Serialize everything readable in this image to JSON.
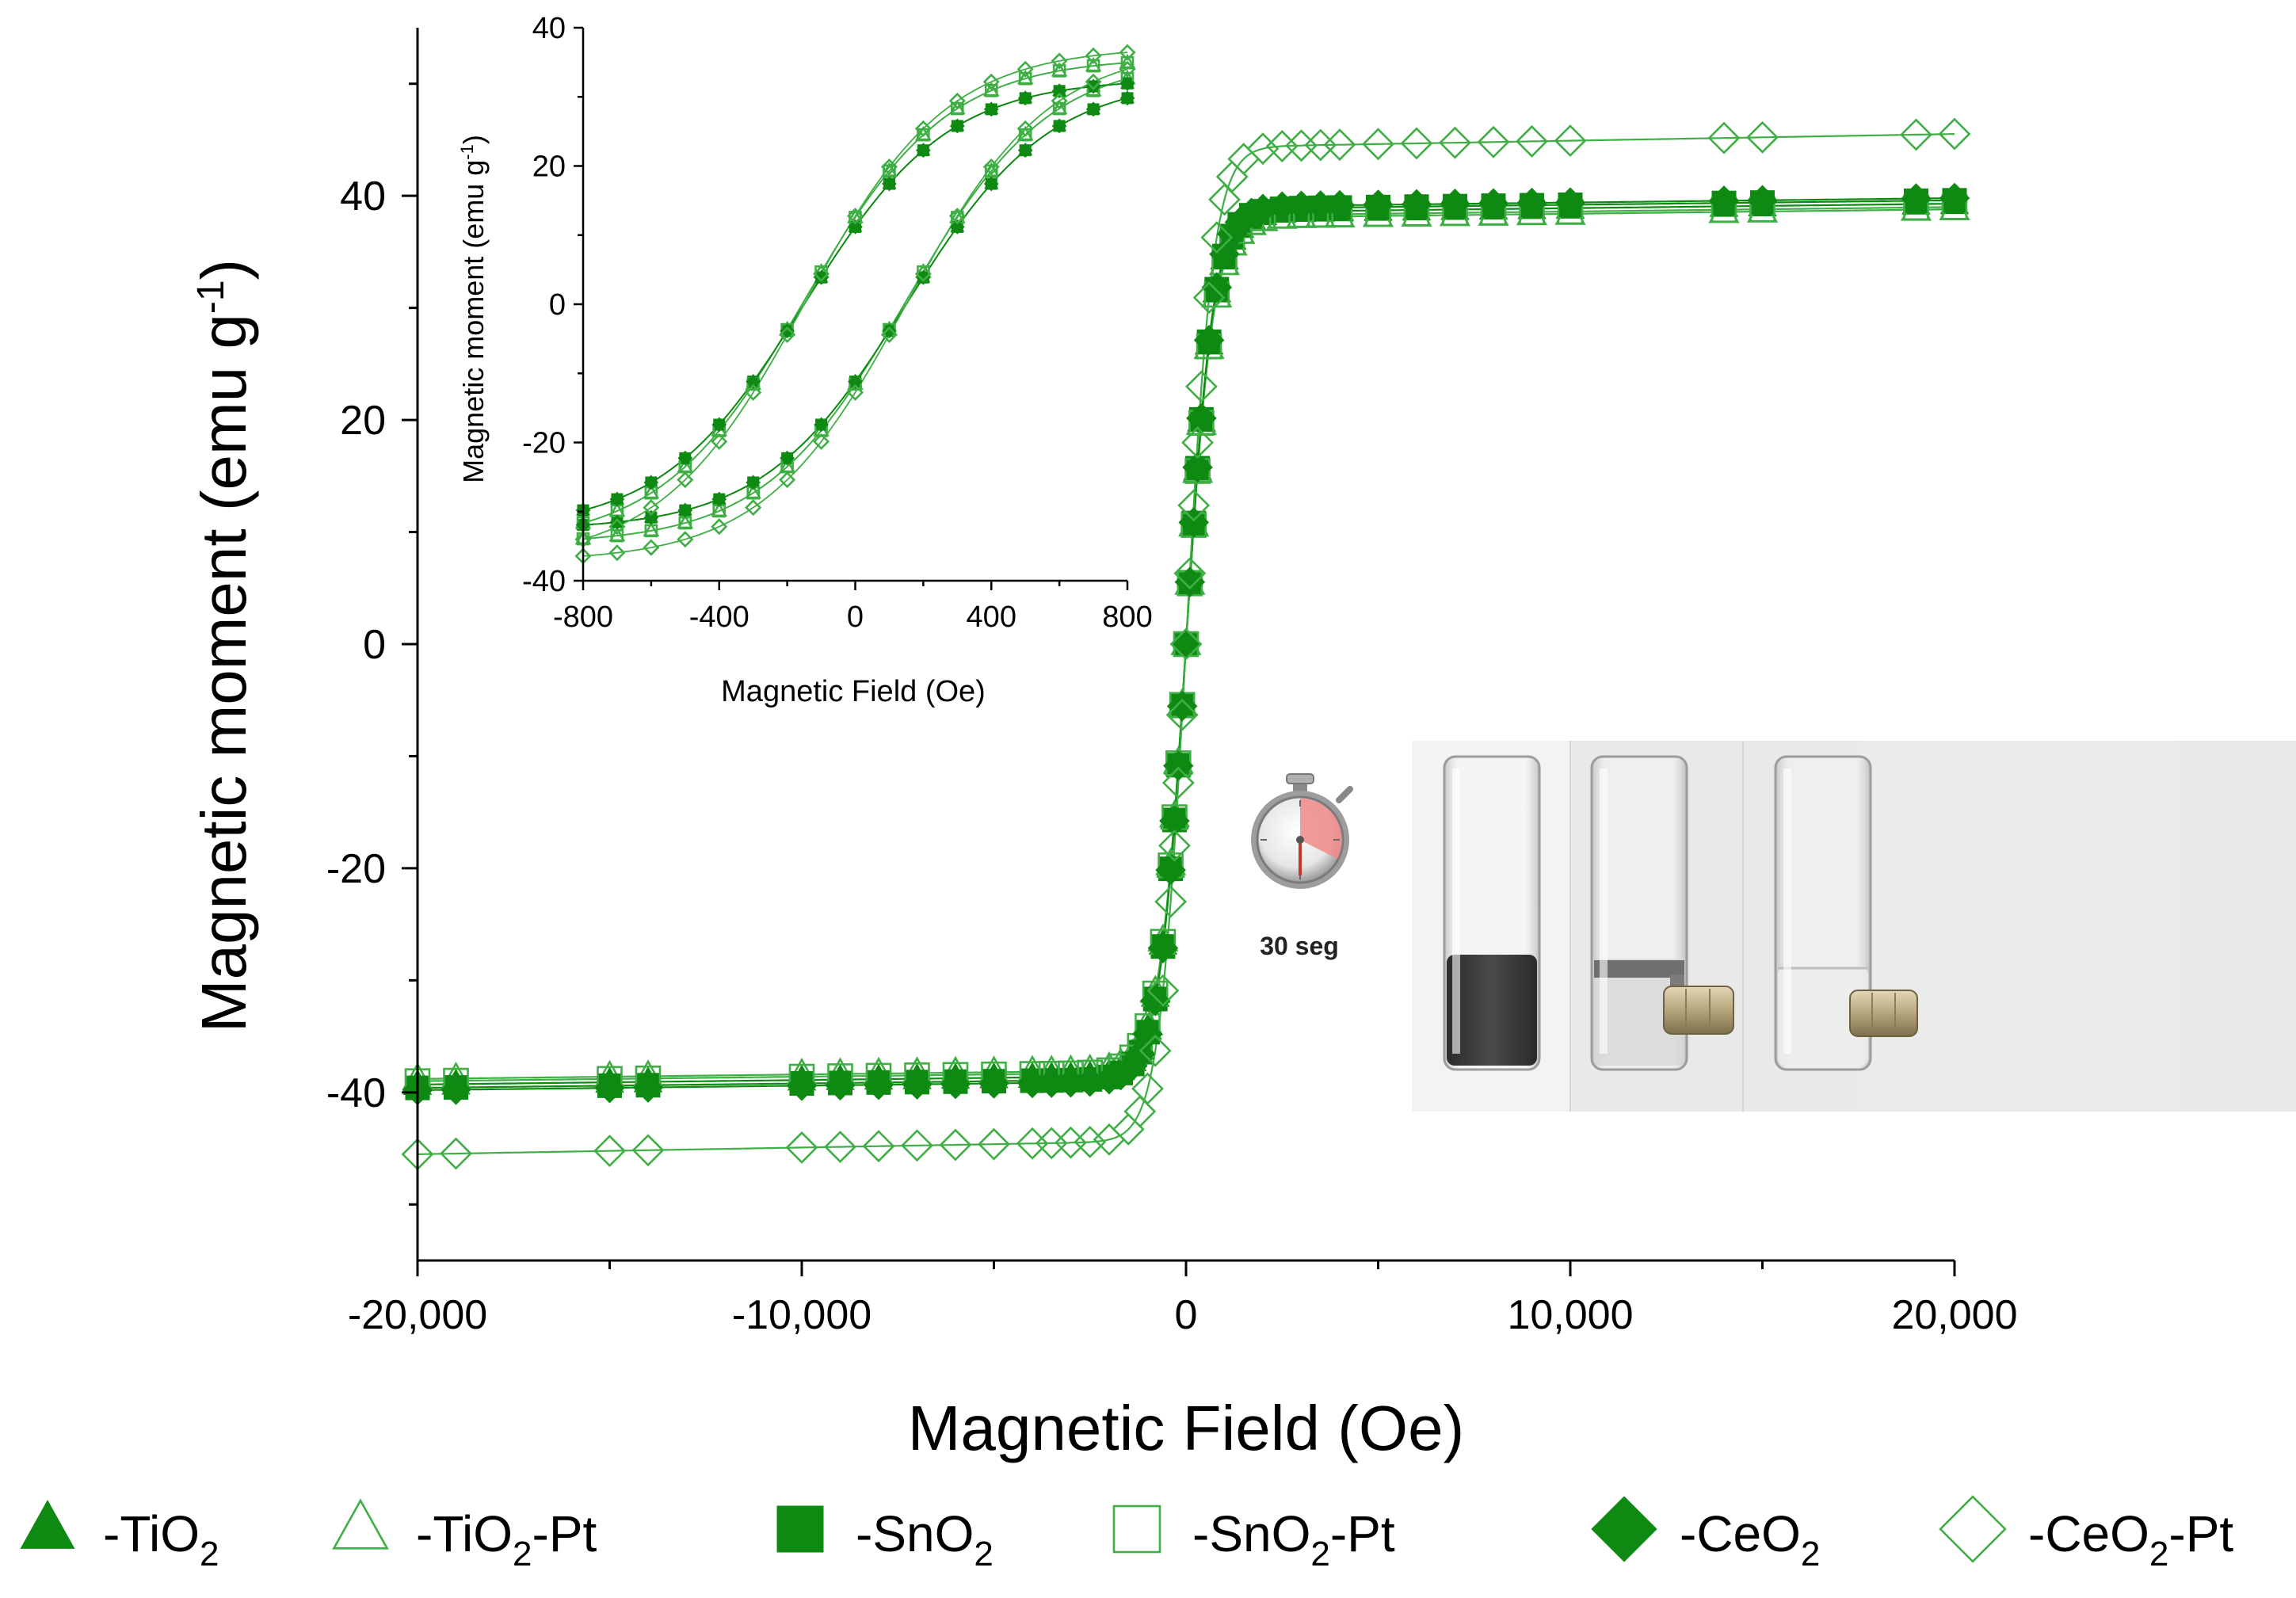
{
  "chart_data": [
    {
      "id": "main",
      "type": "line",
      "xlabel": "Magnetic Field (Oe)",
      "ylabel": "Magnetic moment (emu g",
      "ylabel_sup": "-1",
      "ylabel_end": ")",
      "xlim": [
        -20000,
        20000
      ],
      "ylim": [
        -55,
        55
      ],
      "xticks": [
        -20000,
        -10000,
        0,
        10000,
        20000
      ],
      "xtick_labels": [
        "-20,000",
        "-10,000",
        "0",
        "10,000",
        "20,000"
      ],
      "yticks": [
        -40,
        -20,
        0,
        20,
        40
      ],
      "ytick_labels": [
        "-40",
        "-20",
        "0",
        "20",
        "40"
      ],
      "grid": false,
      "series": [
        {
          "name": "-TiO2",
          "marker": "triangle",
          "filled": true,
          "ms": 38.5
        },
        {
          "name": "-TiO2-Pt",
          "marker": "triangle",
          "filled": false,
          "ms": 38.0
        },
        {
          "name": "-SnO2",
          "marker": "square",
          "filled": true,
          "ms": 38.8
        },
        {
          "name": "-SnO2-Pt",
          "marker": "square",
          "filled": false,
          "ms": 38.2
        },
        {
          "name": "-CeO2",
          "marker": "diamond",
          "filled": true,
          "ms": 39.0
        },
        {
          "name": "-CeO2-Pt",
          "marker": "diamond",
          "filled": false,
          "ms": 44.5
        }
      ]
    },
    {
      "id": "inset",
      "type": "line",
      "xlabel": "Magnetic Field (Oe)",
      "ylabel": "Magnetic moment  (emu g",
      "ylabel_sup": "-1",
      "ylabel_end": ")",
      "xlim": [
        -800,
        800
      ],
      "ylim": [
        -40,
        40
      ],
      "xticks": [
        -800,
        -400,
        0,
        400,
        800
      ],
      "xtick_labels": [
        "-800",
        "-400",
        "0",
        "400",
        "800"
      ],
      "yticks": [
        -40,
        -20,
        0,
        20,
        40
      ],
      "ytick_labels": [
        "-40",
        "-20",
        "0",
        "20",
        "40"
      ],
      "hc": 150,
      "grid": false
    }
  ],
  "annotation": {
    "timer_label": "30 seg"
  },
  "legend": {
    "placement": "bottom",
    "items": [
      {
        "base": "-TiO",
        "sub": "2",
        "tail": "",
        "marker": "triangle",
        "filled": true
      },
      {
        "base": "-TiO",
        "sub": "2",
        "tail": "-Pt",
        "marker": "triangle",
        "filled": false
      },
      {
        "base": "-SnO",
        "sub": "2",
        "tail": "",
        "marker": "square",
        "filled": true
      },
      {
        "base": "-SnO",
        "sub": "2",
        "tail": "-Pt",
        "marker": "square",
        "filled": false
      },
      {
        "base": "-CeO",
        "sub": "2",
        "tail": "",
        "marker": "diamond",
        "filled": true
      },
      {
        "base": "-CeO",
        "sub": "2",
        "tail": "-Pt",
        "marker": "diamond",
        "filled": false
      }
    ]
  },
  "colors": {
    "series": "#0e8a12",
    "series_light": "#3fae45",
    "axis": "#000000"
  }
}
